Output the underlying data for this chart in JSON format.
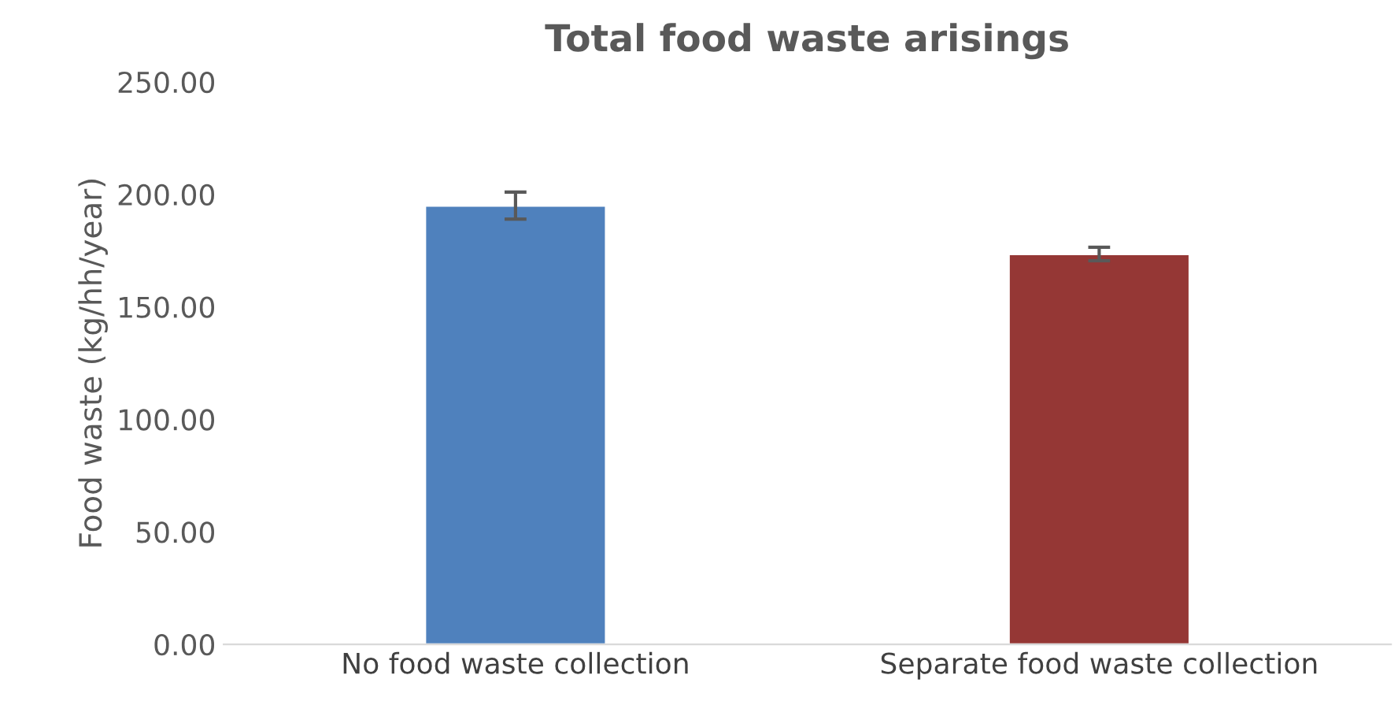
{
  "chart_data": {
    "type": "bar",
    "title": "Total food waste arisings",
    "ylabel": "Food waste (kg/hh/year)",
    "categories": [
      "No food waste collection",
      "Separate food waste collection"
    ],
    "values": [
      195,
      173.5
    ],
    "colors": [
      "#4f81bd",
      "#953735"
    ],
    "errors": [
      6,
      3
    ],
    "ylim": [
      0,
      250
    ],
    "yticks": [
      {
        "value": 0,
        "label": "0.00"
      },
      {
        "value": 50,
        "label": "50.00"
      },
      {
        "value": 100,
        "label": "100.00"
      },
      {
        "value": 150,
        "label": "150.00"
      },
      {
        "value": 200,
        "label": "200.00"
      },
      {
        "value": 250,
        "label": "250.00"
      }
    ],
    "grid": false
  }
}
